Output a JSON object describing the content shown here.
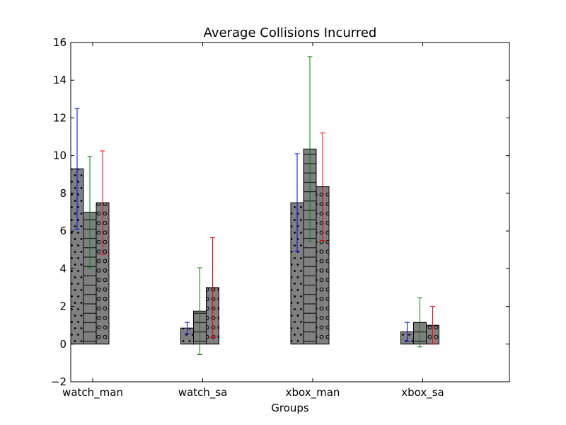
{
  "chart_data": {
    "type": "bar",
    "title": "Average Collisions Incurred",
    "xlabel": "Groups",
    "ylabel": "",
    "ylim": [
      -2,
      16
    ],
    "yticks": [
      -2,
      0,
      2,
      4,
      6,
      8,
      10,
      12,
      14,
      16
    ],
    "grid": false,
    "legend": "none",
    "categories": [
      "watch_man",
      "watch_sa",
      "xbox_man",
      "xbox_sa"
    ],
    "bar_color": "#808080",
    "series": [
      {
        "hatch": "dots",
        "error_color": "#0000ff",
        "values": [
          9.3,
          0.85,
          7.5,
          0.65
        ],
        "errors": [
          3.2,
          0.3,
          2.6,
          0.5
        ]
      },
      {
        "hatch": "horizontal-lines",
        "error_color": "#008000",
        "values": [
          7.0,
          1.75,
          10.35,
          1.15
        ],
        "errors": [
          2.95,
          2.3,
          4.9,
          1.3
        ]
      },
      {
        "hatch": "circles",
        "error_color": "#ff0000",
        "values": [
          7.5,
          3.0,
          8.35,
          1.0
        ],
        "errors": [
          2.75,
          2.65,
          2.85,
          1.0
        ]
      }
    ]
  }
}
